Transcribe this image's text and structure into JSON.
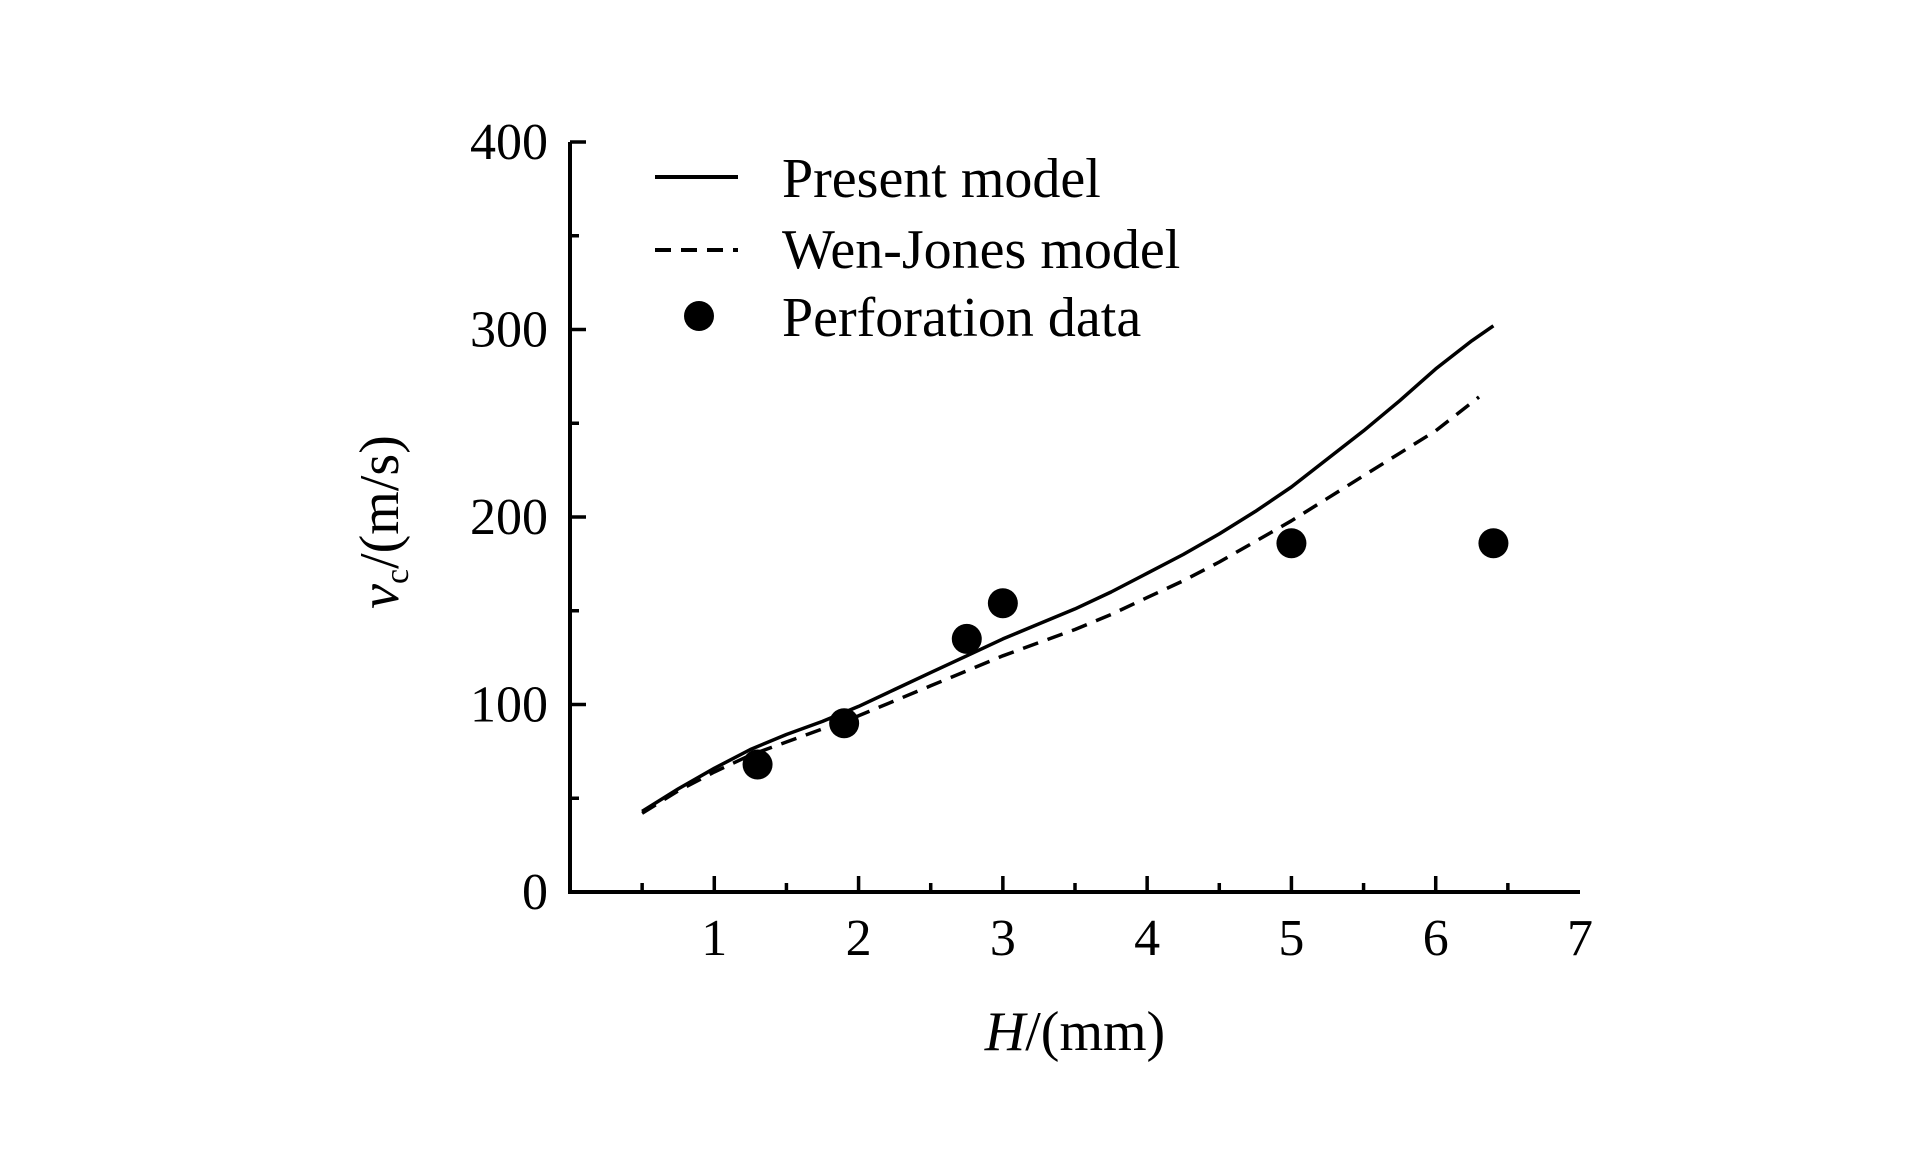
{
  "chart_data": {
    "type": "line",
    "xlabel_var": "H",
    "xlabel_unit": "/(mm)",
    "ylabel_var": "v",
    "ylabel_sub": "c",
    "ylabel_unit": "/(m/s)",
    "xlim": [
      0,
      7
    ],
    "ylim": [
      0,
      400
    ],
    "x_ticks": [
      1,
      2,
      3,
      4,
      5,
      6,
      7
    ],
    "y_ticks": [
      0,
      100,
      200,
      300,
      400
    ],
    "grid": false,
    "legend_position": "top-left",
    "series": [
      {
        "name": "Present model",
        "style": "solid",
        "x": [
          0.5,
          0.75,
          1.0,
          1.25,
          1.5,
          1.75,
          2.0,
          2.25,
          2.5,
          2.75,
          3.0,
          3.25,
          3.5,
          3.75,
          4.0,
          4.25,
          4.5,
          4.75,
          5.0,
          5.25,
          5.5,
          5.75,
          6.0,
          6.25,
          6.4
        ],
        "y": [
          43,
          55,
          66,
          76,
          84,
          91,
          99,
          108,
          117,
          126,
          135,
          143,
          151,
          160,
          170,
          180,
          191,
          203,
          216,
          231,
          246,
          262,
          279,
          294,
          302
        ]
      },
      {
        "name": "Wen-Jones model",
        "style": "dashed",
        "x": [
          0.5,
          0.75,
          1.0,
          1.25,
          1.5,
          1.75,
          2.0,
          2.25,
          2.5,
          2.75,
          3.0,
          3.25,
          3.5,
          3.75,
          4.0,
          4.25,
          4.5,
          4.75,
          5.0,
          5.25,
          5.5,
          5.75,
          6.0,
          6.3
        ],
        "y": [
          42,
          54,
          64,
          73,
          80,
          87,
          94,
          102,
          110,
          118,
          126,
          133,
          140,
          148,
          157,
          166,
          176,
          187,
          198,
          210,
          222,
          234,
          246,
          264
        ]
      },
      {
        "name": "Perforation data",
        "style": "marker",
        "x": [
          1.3,
          1.9,
          2.75,
          3.0,
          5.0,
          6.4
        ],
        "y": [
          68,
          90,
          135,
          154,
          186,
          186
        ]
      }
    ]
  }
}
